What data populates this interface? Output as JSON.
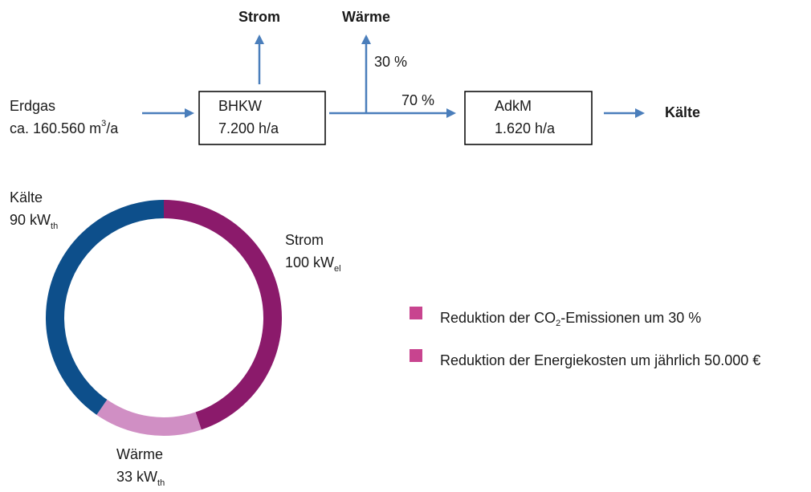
{
  "flow": {
    "outputs": {
      "strom": "Strom",
      "waerme": "Wärme",
      "kaelte": "Kälte"
    },
    "source": {
      "label": "Erdgas",
      "amount": "ca. 160.560 m",
      "sup": "3",
      "unit": "/a"
    },
    "bhkw": {
      "label": "BHKW",
      "hours": "7.200 h/a"
    },
    "adkm": {
      "label": "AdkM",
      "hours": "1.620 h/a"
    },
    "split": {
      "up": "30 %",
      "right": "70 %"
    }
  },
  "bullets": [
    {
      "text": "Reduktion der CO",
      "sub": "2",
      "rest": "-Emissionen um 30 %"
    },
    {
      "text": "Reduktion der Energiekosten um jährlich 50.000 €"
    }
  ],
  "chart_data": {
    "type": "donut",
    "categories": [
      "Strom",
      "Wärme",
      "Kälte"
    ],
    "values": [
      100,
      33,
      90
    ],
    "unit": "kW",
    "subscripts": [
      "el",
      "th",
      "th"
    ],
    "colors": [
      "#8b1a6b",
      "#d08fc4",
      "#0d4f8b"
    ]
  }
}
